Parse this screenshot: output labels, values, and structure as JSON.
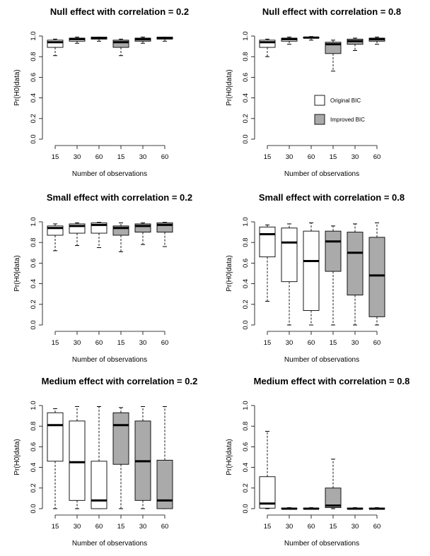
{
  "chart_data": [
    {
      "type": "box",
      "title": "Null effect with correlation = 0.2",
      "xlabel": "Number of observations",
      "ylabel": "Pr(H0|data)",
      "ylim": [
        0,
        1
      ],
      "yticks": [
        "0.0",
        "0.2",
        "0.4",
        "0.6",
        "0.8",
        "1.0"
      ],
      "categories": [
        "15",
        "30",
        "60",
        "15",
        "30",
        "60"
      ],
      "series_fill": [
        "#ffffff",
        "#ffffff",
        "#ffffff",
        "#aaaaaa",
        "#aaaaaa",
        "#aaaaaa"
      ],
      "boxes": [
        {
          "min": 0.81,
          "q1": 0.89,
          "median": 0.94,
          "q3": 0.96,
          "max": 0.97
        },
        {
          "min": 0.93,
          "q1": 0.95,
          "median": 0.97,
          "q3": 0.98,
          "max": 0.99
        },
        {
          "min": 0.95,
          "q1": 0.97,
          "median": 0.98,
          "q3": 0.99,
          "max": 0.99
        },
        {
          "min": 0.81,
          "q1": 0.89,
          "median": 0.94,
          "q3": 0.96,
          "max": 0.97
        },
        {
          "min": 0.93,
          "q1": 0.95,
          "median": 0.97,
          "q3": 0.98,
          "max": 0.99
        },
        {
          "min": 0.95,
          "q1": 0.97,
          "median": 0.98,
          "q3": 0.99,
          "max": 0.99
        }
      ]
    },
    {
      "type": "box",
      "title": "Null effect with correlation = 0.8",
      "xlabel": "Number of observations",
      "ylabel": "Pr(H0|data)",
      "ylim": [
        0,
        1
      ],
      "yticks": [
        "0.0",
        "0.2",
        "0.4",
        "0.6",
        "0.8",
        "1.0"
      ],
      "categories": [
        "15",
        "30",
        "60",
        "15",
        "30",
        "60"
      ],
      "series_fill": [
        "#ffffff",
        "#ffffff",
        "#ffffff",
        "#aaaaaa",
        "#aaaaaa",
        "#aaaaaa"
      ],
      "boxes": [
        {
          "min": 0.8,
          "q1": 0.89,
          "median": 0.94,
          "q3": 0.96,
          "max": 0.97
        },
        {
          "min": 0.92,
          "q1": 0.95,
          "median": 0.97,
          "q3": 0.98,
          "max": 0.99
        },
        {
          "min": 0.96,
          "q1": 0.98,
          "median": 0.985,
          "q3": 0.99,
          "max": 0.995
        },
        {
          "min": 0.66,
          "q1": 0.83,
          "median": 0.92,
          "q3": 0.94,
          "max": 0.96
        },
        {
          "min": 0.86,
          "q1": 0.92,
          "median": 0.95,
          "q3": 0.97,
          "max": 0.98
        },
        {
          "min": 0.92,
          "q1": 0.95,
          "median": 0.97,
          "q3": 0.98,
          "max": 0.99
        }
      ],
      "legend": {
        "placement": "middle-right",
        "entries": [
          {
            "label": "Original BIC",
            "fill": "#ffffff"
          },
          {
            "label": "Improved BIC",
            "fill": "#aaaaaa"
          }
        ]
      }
    },
    {
      "type": "box",
      "title": "Small effect with correlation = 0.2",
      "xlabel": "Number of observations",
      "ylabel": "Pr(H0|data)",
      "ylim": [
        0,
        1
      ],
      "yticks": [
        "0.0",
        "0.2",
        "0.4",
        "0.6",
        "0.8",
        "1.0"
      ],
      "categories": [
        "15",
        "30",
        "60",
        "15",
        "30",
        "60"
      ],
      "series_fill": [
        "#ffffff",
        "#ffffff",
        "#ffffff",
        "#aaaaaa",
        "#aaaaaa",
        "#aaaaaa"
      ],
      "boxes": [
        {
          "min": 0.72,
          "q1": 0.87,
          "median": 0.94,
          "q3": 0.96,
          "max": 0.98
        },
        {
          "min": 0.77,
          "q1": 0.89,
          "median": 0.96,
          "q3": 0.98,
          "max": 0.99
        },
        {
          "min": 0.75,
          "q1": 0.89,
          "median": 0.97,
          "q3": 0.99,
          "max": 0.995
        },
        {
          "min": 0.71,
          "q1": 0.87,
          "median": 0.94,
          "q3": 0.96,
          "max": 0.99
        },
        {
          "min": 0.78,
          "q1": 0.9,
          "median": 0.96,
          "q3": 0.98,
          "max": 0.99
        },
        {
          "min": 0.76,
          "q1": 0.9,
          "median": 0.97,
          "q3": 0.99,
          "max": 0.995
        }
      ]
    },
    {
      "type": "box",
      "title": "Small effect with correlation = 0.8",
      "xlabel": "Number of observations",
      "ylabel": "Pr(H0|data)",
      "ylim": [
        0,
        1
      ],
      "yticks": [
        "0.0",
        "0.2",
        "0.4",
        "0.6",
        "0.8",
        "1.0"
      ],
      "categories": [
        "15",
        "30",
        "60",
        "15",
        "30",
        "60"
      ],
      "series_fill": [
        "#ffffff",
        "#ffffff",
        "#ffffff",
        "#aaaaaa",
        "#aaaaaa",
        "#aaaaaa"
      ],
      "boxes": [
        {
          "min": 0.23,
          "q1": 0.66,
          "median": 0.88,
          "q3": 0.95,
          "max": 0.97
        },
        {
          "min": 0.0,
          "q1": 0.42,
          "median": 0.8,
          "q3": 0.94,
          "max": 0.98
        },
        {
          "min": 0.0,
          "q1": 0.14,
          "median": 0.62,
          "q3": 0.91,
          "max": 0.99
        },
        {
          "min": 0.0,
          "q1": 0.52,
          "median": 0.81,
          "q3": 0.91,
          "max": 0.96
        },
        {
          "min": 0.0,
          "q1": 0.29,
          "median": 0.7,
          "q3": 0.9,
          "max": 0.98
        },
        {
          "min": 0.0,
          "q1": 0.08,
          "median": 0.48,
          "q3": 0.85,
          "max": 0.99
        }
      ]
    },
    {
      "type": "box",
      "title": "Medium effect with correlation = 0.2",
      "xlabel": "Number of observations",
      "ylabel": "Pr(H0|data)",
      "ylim": [
        0,
        1
      ],
      "yticks": [
        "0.0",
        "0.2",
        "0.4",
        "0.6",
        "0.8",
        "1.0"
      ],
      "categories": [
        "15",
        "30",
        "60",
        "15",
        "30",
        "60"
      ],
      "series_fill": [
        "#ffffff",
        "#ffffff",
        "#ffffff",
        "#aaaaaa",
        "#aaaaaa",
        "#aaaaaa"
      ],
      "boxes": [
        {
          "min": 0.0,
          "q1": 0.46,
          "median": 0.81,
          "q3": 0.93,
          "max": 0.97
        },
        {
          "min": 0.0,
          "q1": 0.08,
          "median": 0.45,
          "q3": 0.85,
          "max": 0.99
        },
        {
          "min": 0.0,
          "q1": 0.0,
          "median": 0.08,
          "q3": 0.46,
          "max": 0.99
        },
        {
          "min": 0.0,
          "q1": 0.43,
          "median": 0.81,
          "q3": 0.93,
          "max": 0.98
        },
        {
          "min": 0.0,
          "q1": 0.08,
          "median": 0.46,
          "q3": 0.85,
          "max": 0.99
        },
        {
          "min": 0.0,
          "q1": 0.0,
          "median": 0.08,
          "q3": 0.47,
          "max": 0.99
        }
      ]
    },
    {
      "type": "box",
      "title": "Medium effect with correlation = 0.8",
      "xlabel": "Number of observations",
      "ylabel": "Pr(H0|data)",
      "ylim": [
        0,
        1
      ],
      "yticks": [
        "0.0",
        "0.2",
        "0.4",
        "0.6",
        "0.8",
        "1.0"
      ],
      "categories": [
        "15",
        "30",
        "60",
        "15",
        "30",
        "60"
      ],
      "series_fill": [
        "#ffffff",
        "#ffffff",
        "#ffffff",
        "#aaaaaa",
        "#aaaaaa",
        "#aaaaaa"
      ],
      "boxes": [
        {
          "min": 0.0,
          "q1": 0.005,
          "median": 0.05,
          "q3": 0.31,
          "max": 0.75
        },
        {
          "min": 0.0,
          "q1": 0.0,
          "median": 0.0,
          "q3": 0.005,
          "max": 0.01
        },
        {
          "min": 0.0,
          "q1": 0.0,
          "median": 0.0,
          "q3": 0.005,
          "max": 0.01
        },
        {
          "min": 0.0,
          "q1": 0.01,
          "median": 0.03,
          "q3": 0.2,
          "max": 0.48
        },
        {
          "min": 0.0,
          "q1": 0.0,
          "median": 0.0,
          "q3": 0.005,
          "max": 0.01
        },
        {
          "min": 0.0,
          "q1": 0.0,
          "median": 0.0,
          "q3": 0.005,
          "max": 0.01
        }
      ]
    }
  ]
}
